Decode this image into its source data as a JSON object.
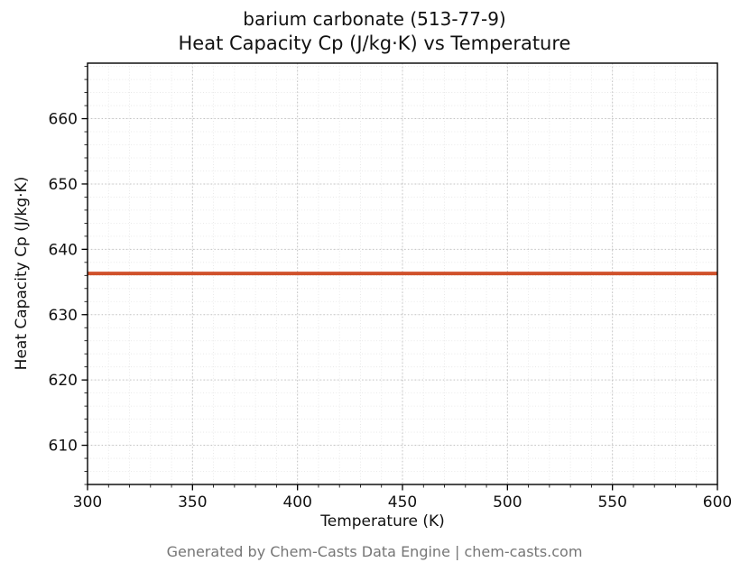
{
  "chart_data": {
    "type": "line",
    "title_line1": "barium carbonate (513-77-9)",
    "title_line2": "Heat Capacity Cp (J/kg·K) vs Temperature",
    "xlabel": "Temperature (K)",
    "ylabel": "Heat Capacity Cp (J/kg·K)",
    "xlim": [
      300,
      600
    ],
    "ylim": [
      604,
      668.5
    ],
    "x_ticks": [
      300,
      350,
      400,
      450,
      500,
      550,
      600
    ],
    "y_ticks": [
      610,
      620,
      630,
      640,
      650,
      660
    ],
    "minor_x_step": 10,
    "minor_y_step": 2,
    "grid": true,
    "legend": false,
    "series": [
      {
        "name": "Heat Capacity Cp",
        "x": [
          300,
          600
        ],
        "values": [
          636.3,
          636.3
        ]
      }
    ],
    "constant_value": 636.3,
    "line_color": "#d0512b",
    "major_grid_color": "#c3c3c3",
    "minor_grid_color": "#e4e4e4",
    "axis_color": "#000000",
    "tick_label_color": "#111111"
  },
  "footer": {
    "text": "Generated by Chem-Casts Data Engine | chem-casts.com"
  }
}
